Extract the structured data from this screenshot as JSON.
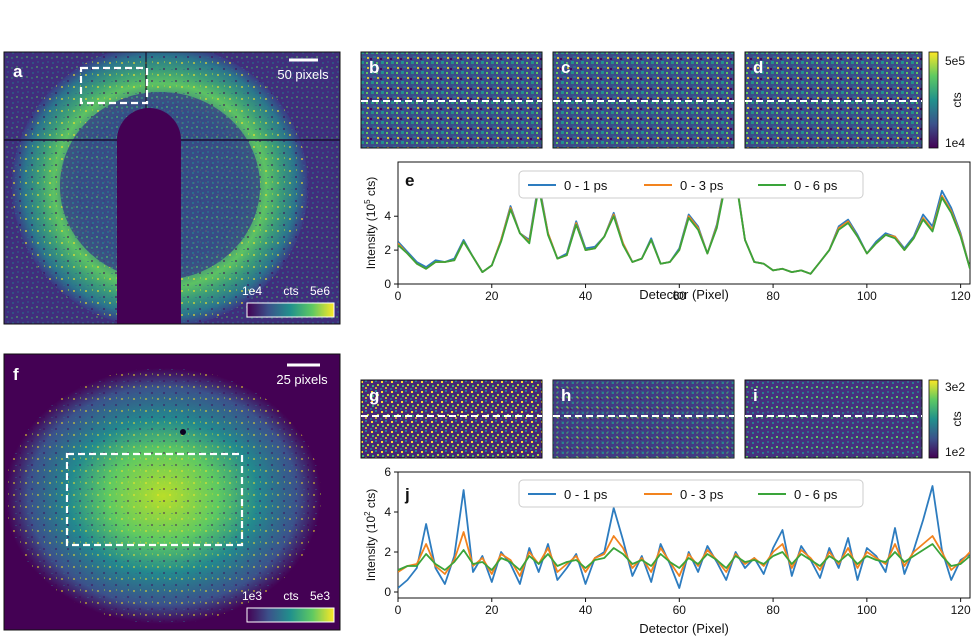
{
  "panels": {
    "a": "a",
    "b": "b",
    "c": "c",
    "d": "d",
    "e": "e",
    "f": "f",
    "g": "g",
    "h": "h",
    "i": "i",
    "j": "j"
  },
  "top": {
    "scalebar": "50 pixels",
    "cbar_min": "1e4",
    "cbar_unit": "cts",
    "cbar_max": "5e6",
    "small_cbar_max": "5e5",
    "small_cbar_min": "1e4",
    "small_cbar_unit": "cts"
  },
  "bottom": {
    "scalebar": "25 pixels",
    "cbar_min": "1e3",
    "cbar_unit": "cts",
    "cbar_max": "5e3",
    "small_cbar_max": "3e2",
    "small_cbar_min": "1e2",
    "small_cbar_unit": "cts"
  },
  "colors": {
    "s1": "#2d7cbf",
    "s2": "#f2831e",
    "s3": "#3aa43a",
    "viridis_dark": "#440154",
    "viridis_mid": "#21918c",
    "viridis_light": "#fde725"
  },
  "chart_data": [
    {
      "type": "line",
      "panel": "e",
      "title": "",
      "xlabel": "Detector (Pixel)",
      "ylabel_main": "Intensity (10",
      "ylabel_sup": "5",
      "ylabel_tail": " cts)",
      "xlim": [
        0,
        122
      ],
      "ylim": [
        0,
        7.2
      ],
      "xticks": [
        "0",
        "20",
        "40",
        "60",
        "80",
        "100",
        "120"
      ],
      "yticks": [
        "0",
        "2",
        "4"
      ],
      "legend_position": "top-center",
      "x": [
        0,
        2,
        4,
        6,
        8,
        10,
        12,
        14,
        16,
        18,
        20,
        22,
        24,
        26,
        28,
        30,
        32,
        34,
        36,
        38,
        40,
        42,
        44,
        46,
        48,
        50,
        52,
        54,
        56,
        58,
        60,
        62,
        64,
        66,
        68,
        70,
        72,
        74,
        76,
        78,
        80,
        82,
        84,
        86,
        88,
        90,
        92,
        94,
        96,
        98,
        100,
        102,
        104,
        106,
        108,
        110,
        112,
        114,
        116,
        118,
        120,
        122
      ],
      "series": [
        {
          "name": "0 - 1 ps",
          "values": [
            2.5,
            1.9,
            1.3,
            1.0,
            1.4,
            1.3,
            1.5,
            2.6,
            1.6,
            0.7,
            1.1,
            2.6,
            4.6,
            3.0,
            2.6,
            6.0,
            3.0,
            1.5,
            1.8,
            3.7,
            2.1,
            2.2,
            2.8,
            4.2,
            2.4,
            1.3,
            1.5,
            2.7,
            1.2,
            1.3,
            2.1,
            4.1,
            3.4,
            1.8,
            3.5,
            6.3,
            6.4,
            2.6,
            1.3,
            1.2,
            0.8,
            0.9,
            0.7,
            0.8,
            0.6,
            1.3,
            2.0,
            3.4,
            3.8,
            2.9,
            1.8,
            2.5,
            3.0,
            2.8,
            2.1,
            2.8,
            4.1,
            3.4,
            5.5,
            4.5,
            3.0,
            0.9
          ]
        },
        {
          "name": "0 - 3 ps",
          "values": [
            2.4,
            1.8,
            1.2,
            0.9,
            1.3,
            1.3,
            1.4,
            2.5,
            1.6,
            0.7,
            1.1,
            2.6,
            4.5,
            3.0,
            2.5,
            5.8,
            3.0,
            1.5,
            1.7,
            3.6,
            2.0,
            2.1,
            2.8,
            4.1,
            2.4,
            1.3,
            1.5,
            2.6,
            1.2,
            1.3,
            2.0,
            4.0,
            3.3,
            1.8,
            3.4,
            6.2,
            6.3,
            2.6,
            1.3,
            1.2,
            0.8,
            0.9,
            0.7,
            0.8,
            0.6,
            1.3,
            2.0,
            3.3,
            3.7,
            2.8,
            1.8,
            2.4,
            2.9,
            2.8,
            2.0,
            2.7,
            3.9,
            3.2,
            5.2,
            4.3,
            2.9,
            0.9
          ]
        },
        {
          "name": "0 - 6 ps",
          "values": [
            2.3,
            1.8,
            1.2,
            0.9,
            1.3,
            1.3,
            1.4,
            2.5,
            1.6,
            0.7,
            1.1,
            2.5,
            4.4,
            3.0,
            2.4,
            5.7,
            2.9,
            1.5,
            1.7,
            3.5,
            2.0,
            2.1,
            2.8,
            4.0,
            2.3,
            1.3,
            1.5,
            2.6,
            1.2,
            1.3,
            2.0,
            3.9,
            3.2,
            1.8,
            3.3,
            6.1,
            6.2,
            2.6,
            1.3,
            1.2,
            0.8,
            0.9,
            0.7,
            0.8,
            0.6,
            1.3,
            2.0,
            3.2,
            3.6,
            2.8,
            1.8,
            2.4,
            2.9,
            2.7,
            2.0,
            2.7,
            3.8,
            3.1,
            5.1,
            4.2,
            2.8,
            0.9
          ]
        }
      ]
    },
    {
      "type": "line",
      "panel": "j",
      "title": "",
      "xlabel": "Detector (Pixel)",
      "ylabel_main": "Intensity (10",
      "ylabel_sup": "2",
      "ylabel_tail": " cts)",
      "xlim": [
        0,
        122
      ],
      "ylim": [
        -0.3,
        6
      ],
      "xticks": [
        "0",
        "20",
        "40",
        "60",
        "80",
        "100",
        "120"
      ],
      "yticks": [
        "0",
        "2",
        "4",
        "6"
      ],
      "legend_position": "top-center",
      "x": [
        0,
        2,
        4,
        6,
        8,
        10,
        12,
        14,
        16,
        18,
        20,
        22,
        24,
        26,
        28,
        30,
        32,
        34,
        36,
        38,
        40,
        42,
        44,
        46,
        48,
        50,
        52,
        54,
        56,
        58,
        60,
        62,
        64,
        66,
        68,
        70,
        72,
        74,
        76,
        78,
        80,
        82,
        84,
        86,
        88,
        90,
        92,
        94,
        96,
        98,
        100,
        102,
        104,
        106,
        108,
        110,
        112,
        114,
        116,
        118,
        120,
        122
      ],
      "series": [
        {
          "name": "0 - 1 ps",
          "values": [
            0.2,
            0.6,
            1.2,
            3.4,
            1.2,
            0.4,
            1.8,
            5.1,
            1.0,
            1.8,
            0.5,
            2.0,
            1.4,
            0.4,
            2.2,
            1.0,
            2.4,
            0.6,
            1.2,
            1.9,
            0.4,
            1.7,
            2.0,
            4.2,
            2.6,
            0.8,
            1.8,
            0.5,
            2.4,
            1.4,
            0.2,
            2.0,
            1.0,
            2.3,
            1.5,
            0.6,
            2.0,
            1.2,
            1.7,
            0.9,
            2.2,
            3.1,
            0.8,
            2.3,
            1.6,
            0.7,
            2.2,
            1.2,
            2.7,
            0.6,
            2.2,
            1.8,
            1.0,
            3.2,
            0.9,
            2.1,
            3.6,
            5.3,
            2.1,
            0.6,
            1.6,
            1.9
          ]
        },
        {
          "name": "0 - 3 ps",
          "values": [
            1.0,
            1.3,
            1.4,
            2.4,
            1.3,
            0.9,
            1.6,
            3.0,
            1.3,
            1.7,
            0.9,
            1.9,
            1.6,
            0.8,
            2.0,
            1.4,
            2.2,
            1.0,
            1.4,
            1.8,
            1.0,
            1.7,
            1.9,
            2.8,
            2.2,
            1.2,
            1.7,
            1.0,
            2.2,
            1.5,
            0.8,
            1.9,
            1.3,
            2.1,
            1.6,
            1.0,
            1.9,
            1.4,
            1.7,
            1.3,
            2.0,
            2.4,
            1.2,
            2.1,
            1.7,
            1.1,
            2.0,
            1.4,
            2.2,
            1.2,
            2.0,
            1.7,
            1.4,
            2.4,
            1.3,
            2.0,
            2.4,
            2.8,
            2.0,
            1.1,
            1.5,
            2.0
          ]
        },
        {
          "name": "0 - 6 ps",
          "values": [
            1.1,
            1.3,
            1.3,
            1.9,
            1.4,
            1.1,
            1.5,
            2.1,
            1.4,
            1.5,
            1.1,
            1.7,
            1.5,
            1.1,
            1.8,
            1.4,
            1.9,
            1.3,
            1.5,
            1.6,
            1.2,
            1.6,
            1.7,
            2.2,
            1.9,
            1.4,
            1.6,
            1.3,
            1.9,
            1.5,
            1.2,
            1.7,
            1.4,
            1.9,
            1.6,
            1.2,
            1.8,
            1.5,
            1.6,
            1.4,
            1.8,
            2.0,
            1.4,
            1.9,
            1.6,
            1.3,
            1.8,
            1.5,
            1.9,
            1.4,
            1.8,
            1.6,
            1.5,
            2.0,
            1.5,
            1.8,
            2.1,
            2.4,
            1.8,
            1.3,
            1.4,
            1.8
          ]
        }
      ]
    }
  ]
}
